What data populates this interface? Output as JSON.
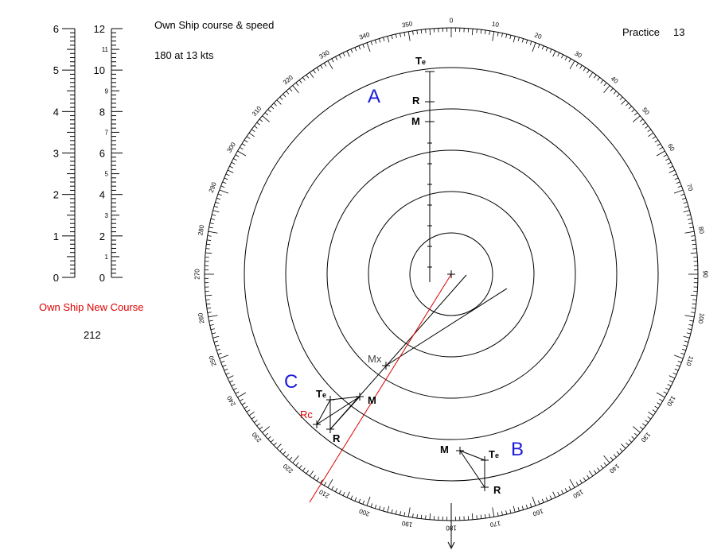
{
  "header": {
    "own_ship_title": "Own Ship course & speed",
    "own_ship_value": "180  at 13 kts",
    "practice_label": "Practice",
    "practice_number": "13"
  },
  "new_course": {
    "label": "Own Ship New Course",
    "value": "212",
    "color": "#dd0000"
  },
  "scale_left": {
    "major_labels": [
      "0",
      "1",
      "2",
      "3",
      "4",
      "5",
      "6"
    ]
  },
  "scale_right": {
    "major_labels": [
      "0",
      "2",
      "4",
      "6",
      "8",
      "10",
      "12"
    ],
    "minor_labels": [
      "1",
      "3",
      "5",
      "7",
      "9",
      "11"
    ]
  },
  "compass": {
    "bearing_labels": [
      "0",
      "10",
      "20",
      "30",
      "40",
      "50",
      "60",
      "70",
      "80",
      "90",
      "100",
      "110",
      "120",
      "130",
      "140",
      "150",
      "160",
      "170",
      "180",
      "190",
      "200",
      "210",
      "220",
      "230",
      "240",
      "250",
      "260",
      "270",
      "280",
      "290",
      "300",
      "310",
      "320",
      "330",
      "340",
      "350"
    ]
  },
  "targets": {
    "A": {
      "label": "A",
      "points": [
        "Te",
        "R",
        "M"
      ]
    },
    "B": {
      "label": "B",
      "points": [
        "M",
        "Te",
        "R"
      ]
    },
    "C": {
      "label": "C",
      "points": [
        "Te",
        "M",
        "R"
      ]
    }
  },
  "annotations": {
    "mx": "Mx",
    "rc": "Rc",
    "te": "T",
    "te_sub": "e",
    "r": "R",
    "m": "M"
  },
  "colors": {
    "accent": "#1a1adc",
    "red": "#dd0000",
    "line": "#000000"
  }
}
